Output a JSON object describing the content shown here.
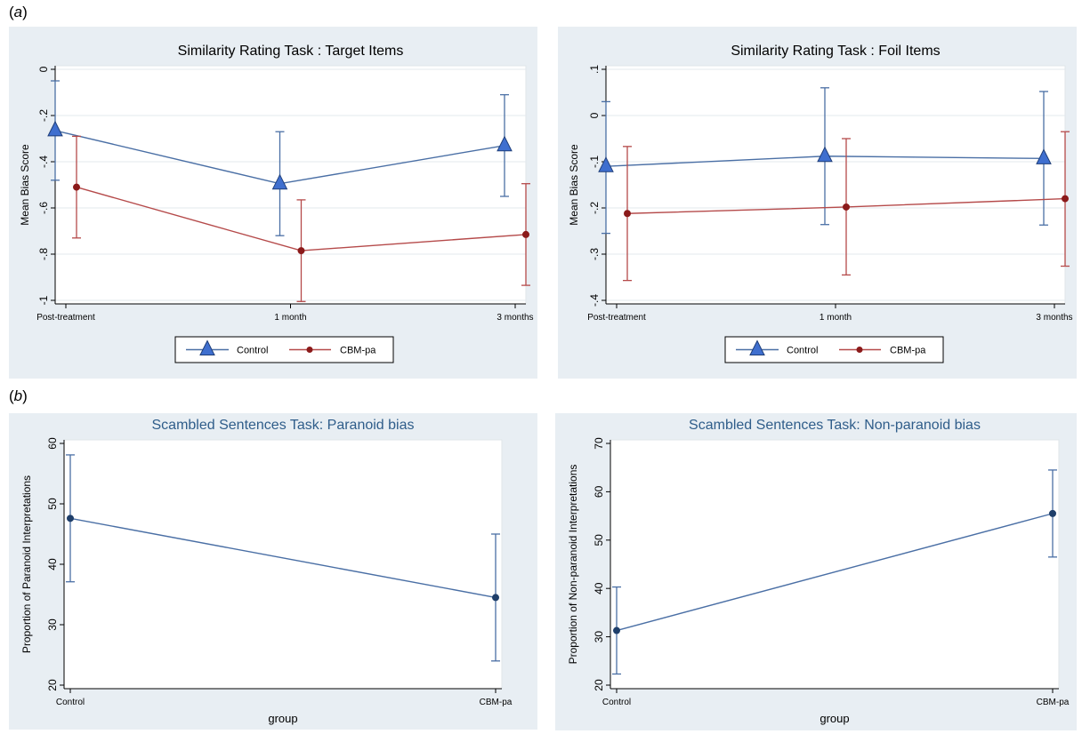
{
  "panel_labels": [
    {
      "open": "(",
      "letter": "a",
      "close": ")"
    },
    {
      "open": "(",
      "letter": "b",
      "close": ")"
    }
  ],
  "chart_data": [
    {
      "type": "line",
      "title": "Similarity Rating Task : Target Items",
      "title_color": "#000000",
      "xlabel": "",
      "ylabel": "Mean Bias Score",
      "categories": [
        "Post-treatment",
        "1 month",
        "3 months"
      ],
      "ylim": [
        -1,
        0
      ],
      "yticks": [
        0,
        -0.2,
        -0.4,
        -0.6,
        -0.8,
        -1
      ],
      "ytick_labels": [
        "0",
        "-.2",
        "-.4",
        "-.6",
        "-.8",
        "-1"
      ],
      "grid": true,
      "legend": "bottom",
      "series": [
        {
          "name": "Control",
          "marker": "triangle",
          "color": "#4a6fa5",
          "fill": "#3f6fcf",
          "values": [
            -0.265,
            -0.495,
            -0.33
          ],
          "lower": [
            -0.48,
            -0.72,
            -0.55
          ],
          "upper": [
            -0.05,
            -0.27,
            -0.11
          ],
          "offset": -0.5
        },
        {
          "name": "CBM-pa",
          "marker": "circle",
          "color": "#b54a4a",
          "fill": "#8b1a1a",
          "values": [
            -0.51,
            -0.785,
            -0.715
          ],
          "lower": [
            -0.73,
            -1.005,
            -0.935
          ],
          "upper": [
            -0.29,
            -0.565,
            -0.495
          ],
          "offset": 0.5
        }
      ]
    },
    {
      "type": "line",
      "title": "Similarity Rating Task : Foil Items",
      "title_color": "#000000",
      "xlabel": "",
      "ylabel": "Mean Bias Score",
      "categories": [
        "Post-treatment",
        "1 month",
        "3 months"
      ],
      "ylim": [
        -0.4,
        0.1
      ],
      "yticks": [
        0.1,
        0,
        -0.1,
        -0.2,
        -0.3,
        -0.4
      ],
      "ytick_labels": [
        ".1",
        "0",
        "-.1",
        "-.2",
        "-.3",
        "-.4"
      ],
      "grid": true,
      "legend": "bottom",
      "series": [
        {
          "name": "Control",
          "marker": "triangle",
          "color": "#4a6fa5",
          "fill": "#3f6fcf",
          "values": [
            -0.11,
            -0.088,
            -0.093
          ],
          "lower": [
            -0.255,
            -0.236,
            -0.237
          ],
          "upper": [
            0.03,
            0.06,
            0.052
          ],
          "offset": -0.5
        },
        {
          "name": "CBM-pa",
          "marker": "circle",
          "color": "#b54a4a",
          "fill": "#8b1a1a",
          "values": [
            -0.212,
            -0.198,
            -0.18
          ],
          "lower": [
            -0.357,
            -0.345,
            -0.326
          ],
          "upper": [
            -0.067,
            -0.05,
            -0.035
          ],
          "offset": 0.5
        }
      ]
    },
    {
      "type": "line",
      "title": "Scambled Sentences Task: Paranoid bias",
      "title_color": "#2f5d8a",
      "xlabel": "group",
      "ylabel": "Proportion of Paranoid Interpretations",
      "categories": [
        "Control",
        "CBM-pa"
      ],
      "ylim": [
        20,
        60
      ],
      "yticks": [
        60,
        50,
        40,
        30,
        20
      ],
      "ytick_labels": [
        "60",
        "50",
        "40",
        "30",
        "20"
      ],
      "grid": false,
      "legend": "none",
      "series": [
        {
          "marker": "circle",
          "color": "#4a6fa5",
          "fill": "#1f3f6a",
          "values": [
            47.6,
            34.5
          ],
          "lower": [
            37.1,
            24.0
          ],
          "upper": [
            58.1,
            45.0
          ],
          "offset": 0
        }
      ]
    },
    {
      "type": "line",
      "title": "Scambled Sentences Task: Non-paranoid bias",
      "title_color": "#2f5d8a",
      "xlabel": "group",
      "ylabel": "Proportion of Non-paranoid Interpretations",
      "categories": [
        "Control",
        "CBM-pa"
      ],
      "ylim": [
        20,
        70
      ],
      "yticks": [
        70,
        60,
        50,
        40,
        30,
        20
      ],
      "ytick_labels": [
        "70",
        "60",
        "50",
        "40",
        "30",
        "20"
      ],
      "grid": false,
      "legend": "none",
      "series": [
        {
          "marker": "circle",
          "color": "#4a6fa5",
          "fill": "#1f3f6a",
          "values": [
            31.3,
            55.5
          ],
          "lower": [
            22.3,
            46.5
          ],
          "upper": [
            40.3,
            64.5
          ],
          "offset": 0
        }
      ]
    }
  ]
}
